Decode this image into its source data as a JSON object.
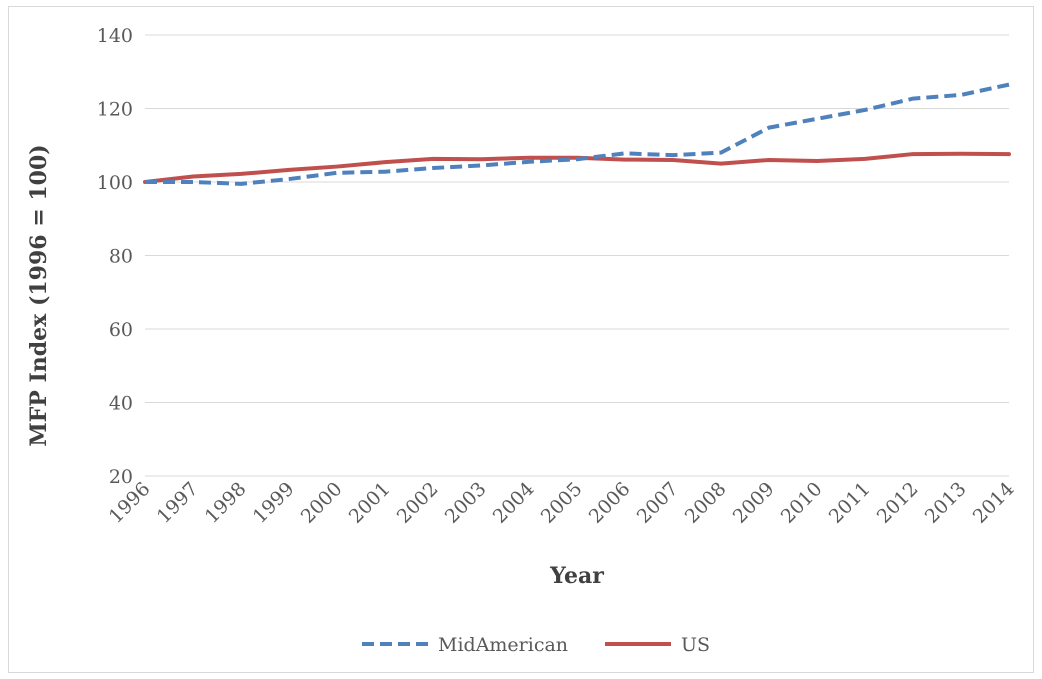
{
  "chart_data": {
    "type": "line",
    "xlabel": "Year",
    "ylabel": "MFP Index (1996 = 100)",
    "ylim": [
      20,
      140
    ],
    "yticks": [
      20,
      40,
      60,
      80,
      100,
      120,
      140
    ],
    "grid": true,
    "legend_position": "bottom",
    "categories": [
      "1996",
      "1997",
      "1998",
      "1999",
      "2000",
      "2001",
      "2002",
      "2003",
      "2004",
      "2005",
      "2006",
      "2007",
      "2008",
      "2009",
      "2010",
      "2011",
      "2012",
      "2013",
      "2014"
    ],
    "series": [
      {
        "name": "MidAmerican",
        "color": "#4f81bd",
        "style": "dashed",
        "values": [
          100,
          100,
          99.5,
          100.8,
          102.5,
          102.8,
          103.8,
          104.5,
          105.5,
          106.2,
          107.8,
          107.3,
          108.0,
          114.8,
          117.2,
          119.6,
          122.7,
          123.7,
          126.5
        ]
      },
      {
        "name": "US",
        "color": "#c0504d",
        "style": "solid",
        "values": [
          100,
          101.5,
          102.2,
          103.3,
          104.2,
          105.4,
          106.3,
          106.2,
          106.6,
          106.6,
          106.1,
          106.0,
          105.0,
          106.0,
          105.7,
          106.3,
          107.6,
          107.7,
          107.6
        ]
      }
    ]
  }
}
